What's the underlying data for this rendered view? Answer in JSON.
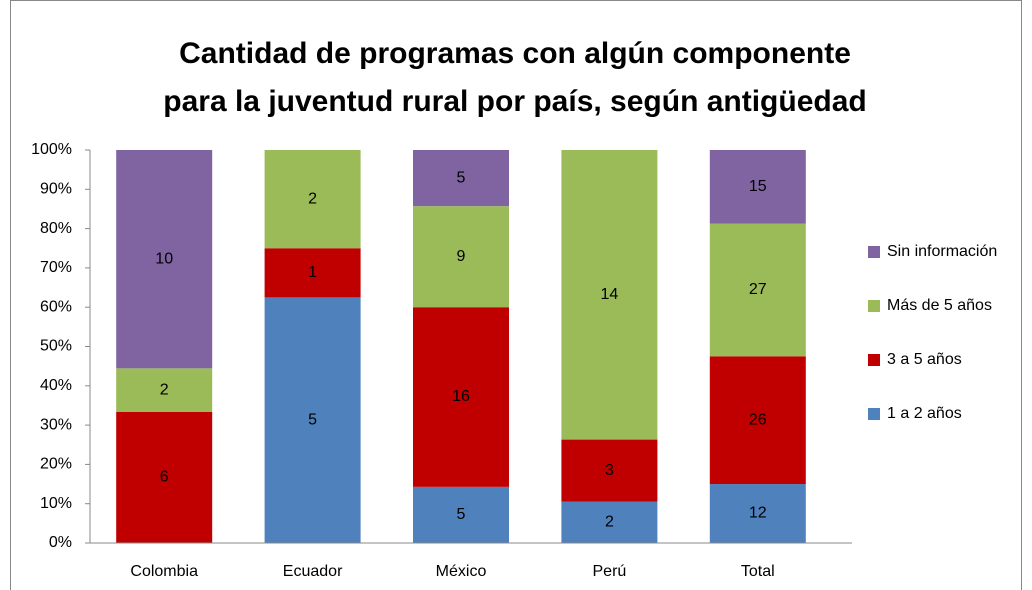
{
  "chart_data": {
    "type": "bar",
    "stacked": "percent",
    "title": [
      "Cantidad de programas con algún componente",
      "para la juventud rural por país, según antigüedad"
    ],
    "categories": [
      "Colombia",
      "Ecuador",
      "México",
      "Perú",
      "Total"
    ],
    "series": [
      {
        "name": "1 a 2 años",
        "color": "#4f81bd",
        "values": [
          0,
          5,
          5,
          2,
          12
        ]
      },
      {
        "name": "3 a 5 años",
        "color": "#c00000",
        "values": [
          6,
          1,
          16,
          3,
          26
        ]
      },
      {
        "name": "Más de 5 años",
        "color": "#9bbb59",
        "values": [
          2,
          2,
          9,
          14,
          27
        ]
      },
      {
        "name": "Sin información",
        "color": "#8064a2",
        "values": [
          10,
          0,
          5,
          0,
          15
        ]
      }
    ],
    "ylim": [
      0,
      100
    ],
    "yticks": [
      {
        "value": 0,
        "label": "0%"
      },
      {
        "value": 10,
        "label": "10%"
      },
      {
        "value": 20,
        "label": "20%"
      },
      {
        "value": 30,
        "label": "30%"
      },
      {
        "value": 40,
        "label": "40%"
      },
      {
        "value": 50,
        "label": "50%"
      },
      {
        "value": 60,
        "label": "60%"
      },
      {
        "value": 70,
        "label": "70%"
      },
      {
        "value": 80,
        "label": "80%"
      },
      {
        "value": 90,
        "label": "90%"
      },
      {
        "value": 100,
        "label": "100%"
      }
    ],
    "legend": "right"
  }
}
